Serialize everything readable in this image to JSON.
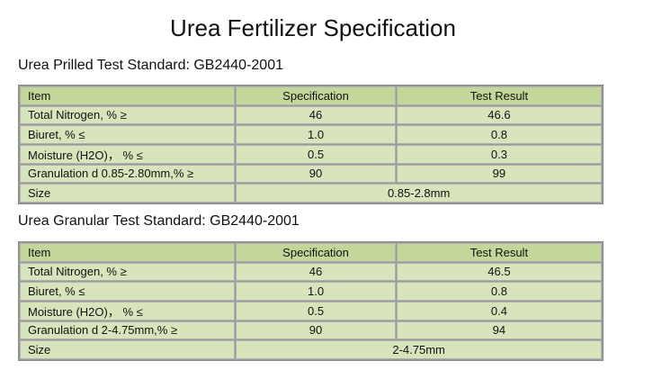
{
  "title": "Urea Fertilizer Specification",
  "sections": [
    {
      "heading": "Urea Prilled Test Standard: GB2440-2001",
      "table": {
        "header": [
          "Item",
          "Specification",
          "Test Result"
        ],
        "rows": [
          [
            "Total Nitrogen, % ≥",
            "46",
            "46.6"
          ],
          [
            "Biuret, % ≤",
            "1.0",
            "0.8"
          ],
          [
            "Moisture (H2O)， % ≤",
            "0.5",
            "0.3"
          ],
          [
            "Granulation d 0.85-2.80mm,% ≥",
            "90",
            "99"
          ],
          [
            "Size",
            "0.85-2.8mm"
          ]
        ]
      }
    },
    {
      "heading": "Urea Granular Test Standard: GB2440-2001",
      "table": {
        "header": [
          "Item",
          "Specification",
          "Test Result"
        ],
        "rows": [
          [
            "Total Nitrogen, % ≥",
            "46",
            "46.5"
          ],
          [
            "Biuret, % ≤",
            "1.0",
            "0.8"
          ],
          [
            "Moisture (H2O)， % ≤",
            "0.5",
            "0.4"
          ],
          [
            "Granulation d 2-4.75mm,% ≥",
            "90",
            "94"
          ],
          [
            "Size",
            "2-4.75mm"
          ]
        ]
      }
    }
  ]
}
